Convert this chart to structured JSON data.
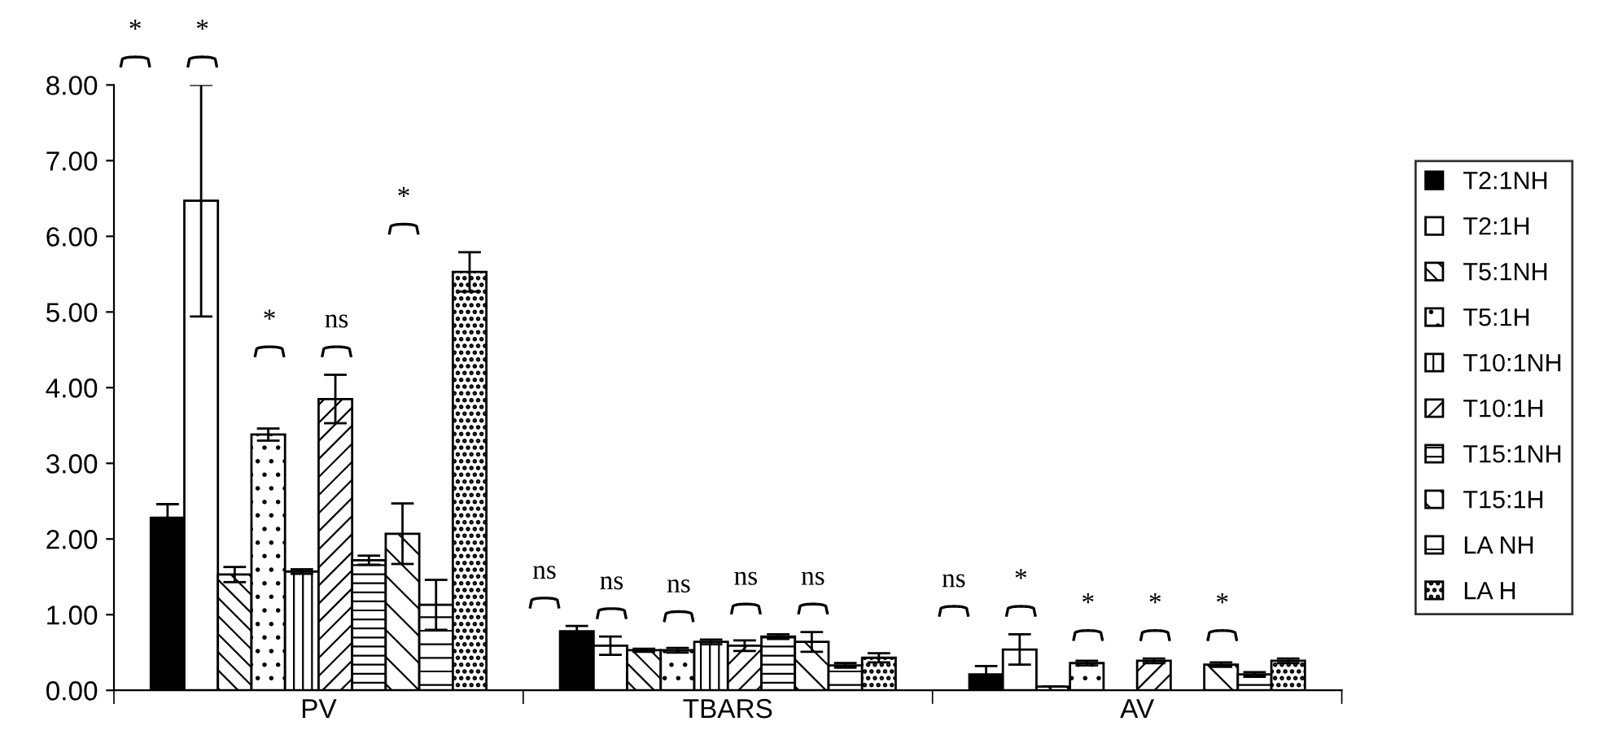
{
  "chart_data": {
    "type": "bar",
    "categories": [
      "PV",
      "TBARS",
      "AV"
    ],
    "series": [
      {
        "name": "T2:1NH",
        "color": "#000000",
        "values": [
          2.28,
          0.78,
          0.21
        ],
        "errors": [
          0.18,
          0.07,
          0.11
        ]
      },
      {
        "name": "T2:1H",
        "color": "#ffffff",
        "values": [
          6.47,
          0.59,
          0.54
        ],
        "errors": [
          1.53,
          0.12,
          0.2
        ]
      },
      {
        "name": "T5:1NH",
        "values": [
          1.53,
          0.53,
          0.05
        ],
        "errors": [
          0.1,
          0.02,
          null
        ]
      },
      {
        "name": "T5:1H",
        "values": [
          3.38,
          0.53,
          0.36
        ],
        "errors": [
          0.08,
          0.03,
          0.03
        ]
      },
      {
        "name": "T10:1NH",
        "values": [
          1.57,
          0.64,
          null
        ],
        "errors": [
          0.03,
          0.03,
          null
        ]
      },
      {
        "name": "T10:1H",
        "values": [
          3.85,
          0.59,
          0.39
        ],
        "errors": [
          0.32,
          0.07,
          0.03
        ]
      },
      {
        "name": "T15:1NH",
        "values": [
          1.72,
          0.71,
          null
        ],
        "errors": [
          0.06,
          0.03,
          null
        ]
      },
      {
        "name": "T15:1H",
        "values": [
          2.07,
          0.64,
          0.34
        ],
        "errors": [
          0.4,
          0.13,
          0.03
        ]
      },
      {
        "name": "LA NH",
        "values": [
          1.13,
          0.33,
          0.21
        ],
        "errors": [
          0.33,
          0.03,
          0.03
        ]
      },
      {
        "name": "LA H",
        "values": [
          5.53,
          0.43,
          0.39
        ],
        "errors": [
          0.26,
          0.06,
          0.03
        ]
      }
    ],
    "ylim": [
      0,
      8
    ],
    "yticks": [
      {
        "value": 0,
        "label": "0.00"
      },
      {
        "value": 1,
        "label": "1.00"
      },
      {
        "value": 2,
        "label": "2.00"
      },
      {
        "value": 3,
        "label": "3.00"
      },
      {
        "value": 4,
        "label": "4.00"
      },
      {
        "value": 5,
        "label": "5.00"
      },
      {
        "value": 6,
        "label": "6.00"
      },
      {
        "value": 7,
        "label": "7.00"
      },
      {
        "value": 8,
        "label": "8.00"
      }
    ],
    "annotations": [
      "*",
      "*",
      "*",
      "ns",
      "*",
      "ns",
      "ns",
      "ns",
      "ns",
      "ns",
      "ns",
      "*",
      "*",
      "*",
      "*"
    ],
    "legend": "right",
    "grid": false
  }
}
